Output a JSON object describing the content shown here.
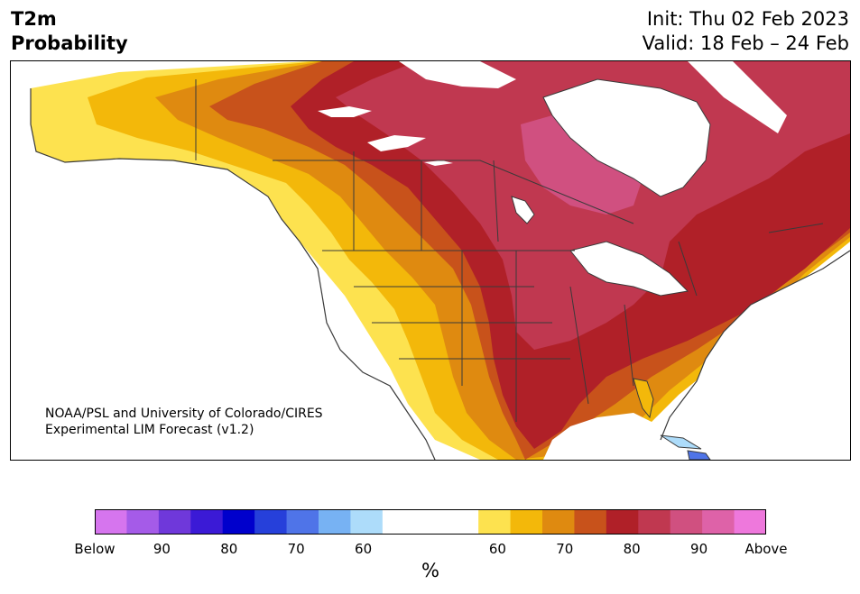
{
  "header": {
    "variable": "T2m",
    "product": "Probability",
    "init": "Init: Thu 02 Feb 2023",
    "valid": "Valid: 18 Feb – 24 Feb"
  },
  "credit": {
    "line1": "NOAA/PSL and University of Colorado/CIRES",
    "line2": "Experimental LIM Forecast (v1.2)"
  },
  "colorbar": {
    "unit": "%",
    "below_colors": [
      "#d675ee",
      "#a55be8",
      "#6f38da",
      "#3b1ad6",
      "#0000cc",
      "#2640da",
      "#4f74e8",
      "#77b2f3",
      "#addcfa"
    ],
    "neutral_color": "#ffffff",
    "above_colors": [
      "#fde24f",
      "#f3b80a",
      "#df8a10",
      "#c8521b",
      "#b02028",
      "#c03850",
      "#d05080",
      "#de62a8",
      "#ee78dc"
    ],
    "ticks": [
      "Below",
      "90",
      "80",
      "70",
      "60",
      "60",
      "70",
      "80",
      "90",
      "Above"
    ]
  },
  "colors": {
    "land_outline": "#3a3a3a",
    "water": "#ffffff"
  }
}
